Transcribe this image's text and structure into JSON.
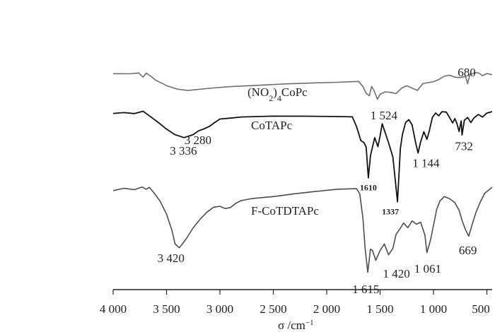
{
  "chart_data": {
    "type": "line",
    "title": "",
    "xlabel": "σ /cm",
    "xlabel_sup": "−1",
    "xlim": [
      4000,
      450
    ],
    "x_ticks": [
      4000,
      3500,
      3000,
      2500,
      2000,
      1500,
      1000,
      500
    ],
    "x_tick_labels": [
      "4 000",
      "3 500",
      "3 000",
      "2 500",
      "2 000",
      "1 500",
      "1 000",
      "500"
    ],
    "grid": false,
    "series": [
      {
        "name": "(NO₂)₄CoPc",
        "label_main": "(NO",
        "label_sub": "2",
        "label_rest": ")",
        "label_sub2": "4",
        "label_tail": "CoPc",
        "color": "#6e6e6e",
        "points": [
          [
            4000,
            0.15
          ],
          [
            3850,
            0.15
          ],
          [
            3760,
            0.08
          ],
          [
            3720,
            0.45
          ],
          [
            3690,
            0.1
          ],
          [
            3650,
            0.4
          ],
          [
            3600,
            0.75
          ],
          [
            3500,
            1.3
          ],
          [
            3400,
            1.65
          ],
          [
            3300,
            1.75
          ],
          [
            3100,
            1.55
          ],
          [
            2900,
            1.35
          ],
          [
            2700,
            1.25
          ],
          [
            2400,
            1.15
          ],
          [
            2100,
            1.0
          ],
          [
            1900,
            0.95
          ],
          [
            1780,
            0.95
          ],
          [
            1700,
            0.9
          ],
          [
            1660,
            1.4
          ],
          [
            1630,
            2.0
          ],
          [
            1600,
            2.2
          ],
          [
            1580,
            1.4
          ],
          [
            1560,
            1.7
          ],
          [
            1524,
            2.6
          ],
          [
            1500,
            2.1
          ],
          [
            1450,
            1.9
          ],
          [
            1400,
            1.95
          ],
          [
            1350,
            2.0
          ],
          [
            1300,
            1.5
          ],
          [
            1250,
            1.3
          ],
          [
            1200,
            1.5
          ],
          [
            1150,
            1.7
          ],
          [
            1100,
            1.1
          ],
          [
            1050,
            1.0
          ],
          [
            1000,
            0.9
          ],
          [
            950,
            0.7
          ],
          [
            900,
            0.4
          ],
          [
            850,
            0.3
          ],
          [
            800,
            0.5
          ],
          [
            750,
            0.55
          ],
          [
            700,
            0.4
          ],
          [
            680,
            1.05
          ],
          [
            660,
            0.3
          ],
          [
            620,
            0.05
          ],
          [
            580,
            0.1
          ],
          [
            540,
            0.35
          ],
          [
            500,
            0.15
          ],
          [
            450,
            0.25
          ]
        ]
      },
      {
        "name": "CoTAPc",
        "color": "#111111",
        "points": [
          [
            4000,
            0.2
          ],
          [
            3900,
            0.1
          ],
          [
            3800,
            0.2
          ],
          [
            3720,
            0.0
          ],
          [
            3680,
            0.3
          ],
          [
            3640,
            0.6
          ],
          [
            3580,
            1.2
          ],
          [
            3500,
            1.9
          ],
          [
            3420,
            2.5
          ],
          [
            3336,
            2.85
          ],
          [
            3250,
            2.5
          ],
          [
            3200,
            2.1
          ],
          [
            3150,
            1.9
          ],
          [
            3100,
            1.6
          ],
          [
            3050,
            1.2
          ],
          [
            3000,
            0.8
          ],
          [
            2900,
            0.7
          ],
          [
            2800,
            0.6
          ],
          [
            2500,
            0.5
          ],
          [
            2200,
            0.5
          ],
          [
            1900,
            0.55
          ],
          [
            1760,
            0.6
          ],
          [
            1720,
            1.6
          ],
          [
            1680,
            3.2
          ],
          [
            1650,
            3.4
          ],
          [
            1630,
            3.9
          ],
          [
            1610,
            7.2
          ],
          [
            1590,
            4.8
          ],
          [
            1570,
            3.8
          ],
          [
            1550,
            2.8
          ],
          [
            1520,
            3.8
          ],
          [
            1500,
            2.6
          ],
          [
            1480,
            1.3
          ],
          [
            1460,
            2.0
          ],
          [
            1420,
            3.4
          ],
          [
            1380,
            5.0
          ],
          [
            1337,
            9.8
          ],
          [
            1310,
            4.0
          ],
          [
            1290,
            2.4
          ],
          [
            1260,
            1.2
          ],
          [
            1230,
            0.9
          ],
          [
            1200,
            1.5
          ],
          [
            1170,
            3.2
          ],
          [
            1144,
            4.5
          ],
          [
            1120,
            3.3
          ],
          [
            1090,
            2.2
          ],
          [
            1061,
            3.0
          ],
          [
            1040,
            2.2
          ],
          [
            1010,
            0.6
          ],
          [
            980,
            0.2
          ],
          [
            950,
            0.5
          ],
          [
            920,
            0.0
          ],
          [
            880,
            0.1
          ],
          [
            850,
            0.6
          ],
          [
            820,
            1.2
          ],
          [
            800,
            0.8
          ],
          [
            780,
            1.3
          ],
          [
            760,
            2.2
          ],
          [
            740,
            1.0
          ],
          [
            732,
            2.5
          ],
          [
            710,
            0.9
          ],
          [
            680,
            0.6
          ],
          [
            650,
            1.2
          ],
          [
            620,
            0.7
          ],
          [
            580,
            0.3
          ],
          [
            540,
            0.6
          ],
          [
            500,
            0.2
          ],
          [
            450,
            0.0
          ]
        ]
      },
      {
        "name": "F-CoTDTAPc",
        "color": "#4d4d4d",
        "points": [
          [
            4000,
            0.3
          ],
          [
            3900,
            0.1
          ],
          [
            3800,
            0.2
          ],
          [
            3730,
            0.0
          ],
          [
            3690,
            0.2
          ],
          [
            3660,
            0.0
          ],
          [
            3620,
            0.5
          ],
          [
            3560,
            1.2
          ],
          [
            3500,
            2.4
          ],
          [
            3450,
            3.8
          ],
          [
            3420,
            5.0
          ],
          [
            3380,
            5.4
          ],
          [
            3320,
            4.6
          ],
          [
            3250,
            3.6
          ],
          [
            3180,
            2.8
          ],
          [
            3120,
            2.2
          ],
          [
            3060,
            1.8
          ],
          [
            3000,
            1.7
          ],
          [
            2950,
            1.9
          ],
          [
            2900,
            1.8
          ],
          [
            2850,
            1.4
          ],
          [
            2800,
            1.2
          ],
          [
            2700,
            1.0
          ],
          [
            2500,
            0.8
          ],
          [
            2300,
            0.6
          ],
          [
            2100,
            0.4
          ],
          [
            1900,
            0.2
          ],
          [
            1720,
            0.1
          ],
          [
            1690,
            0.6
          ],
          [
            1660,
            2.8
          ],
          [
            1640,
            5.4
          ],
          [
            1615,
            7.5
          ],
          [
            1590,
            5.5
          ],
          [
            1570,
            5.6
          ],
          [
            1540,
            6.5
          ],
          [
            1500,
            5.6
          ],
          [
            1460,
            5.0
          ],
          [
            1420,
            6.0
          ],
          [
            1380,
            5.4
          ],
          [
            1350,
            4.2
          ],
          [
            1310,
            3.6
          ],
          [
            1280,
            3.2
          ],
          [
            1240,
            3.6
          ],
          [
            1200,
            3.0
          ],
          [
            1160,
            3.3
          ],
          [
            1120,
            3.1
          ],
          [
            1080,
            4.2
          ],
          [
            1061,
            5.8
          ],
          [
            1030,
            4.8
          ],
          [
            1000,
            3.4
          ],
          [
            970,
            2.0
          ],
          [
            940,
            1.2
          ],
          [
            900,
            0.8
          ],
          [
            850,
            1.0
          ],
          [
            800,
            1.4
          ],
          [
            760,
            2.0
          ],
          [
            730,
            3.0
          ],
          [
            700,
            3.8
          ],
          [
            669,
            4.3
          ],
          [
            640,
            3.4
          ],
          [
            600,
            2.2
          ],
          [
            560,
            1.3
          ],
          [
            520,
            0.5
          ],
          [
            480,
            0.2
          ],
          [
            450,
            0.0
          ]
        ]
      }
    ],
    "annotations": [
      {
        "text": "1 524",
        "x": 1524,
        "series": 0,
        "style": "normal"
      },
      {
        "text": "680",
        "x": 680,
        "series": 0,
        "style": "normal"
      },
      {
        "text": "3 336",
        "x": 3336,
        "series": 1,
        "style": "normal"
      },
      {
        "text": "3 280",
        "x": 3280,
        "series": 1,
        "style": "normal"
      },
      {
        "text": "1610",
        "x": 1610,
        "series": 1,
        "style": "bold"
      },
      {
        "text": "1337",
        "x": 1337,
        "series": 1,
        "style": "bold"
      },
      {
        "text": "1 144",
        "x": 1144,
        "series": 1,
        "style": "normal"
      },
      {
        "text": "732",
        "x": 732,
        "series": 1,
        "style": "normal"
      },
      {
        "text": "3 420",
        "x": 3420,
        "series": 2,
        "style": "normal"
      },
      {
        "text": "1 615",
        "x": 1615,
        "series": 2,
        "style": "normal"
      },
      {
        "text": "1 420",
        "x": 1420,
        "series": 2,
        "style": "normal"
      },
      {
        "text": "1 061",
        "x": 1061,
        "series": 2,
        "style": "normal"
      },
      {
        "text": "669",
        "x": 669,
        "series": 2,
        "style": "normal"
      }
    ]
  }
}
